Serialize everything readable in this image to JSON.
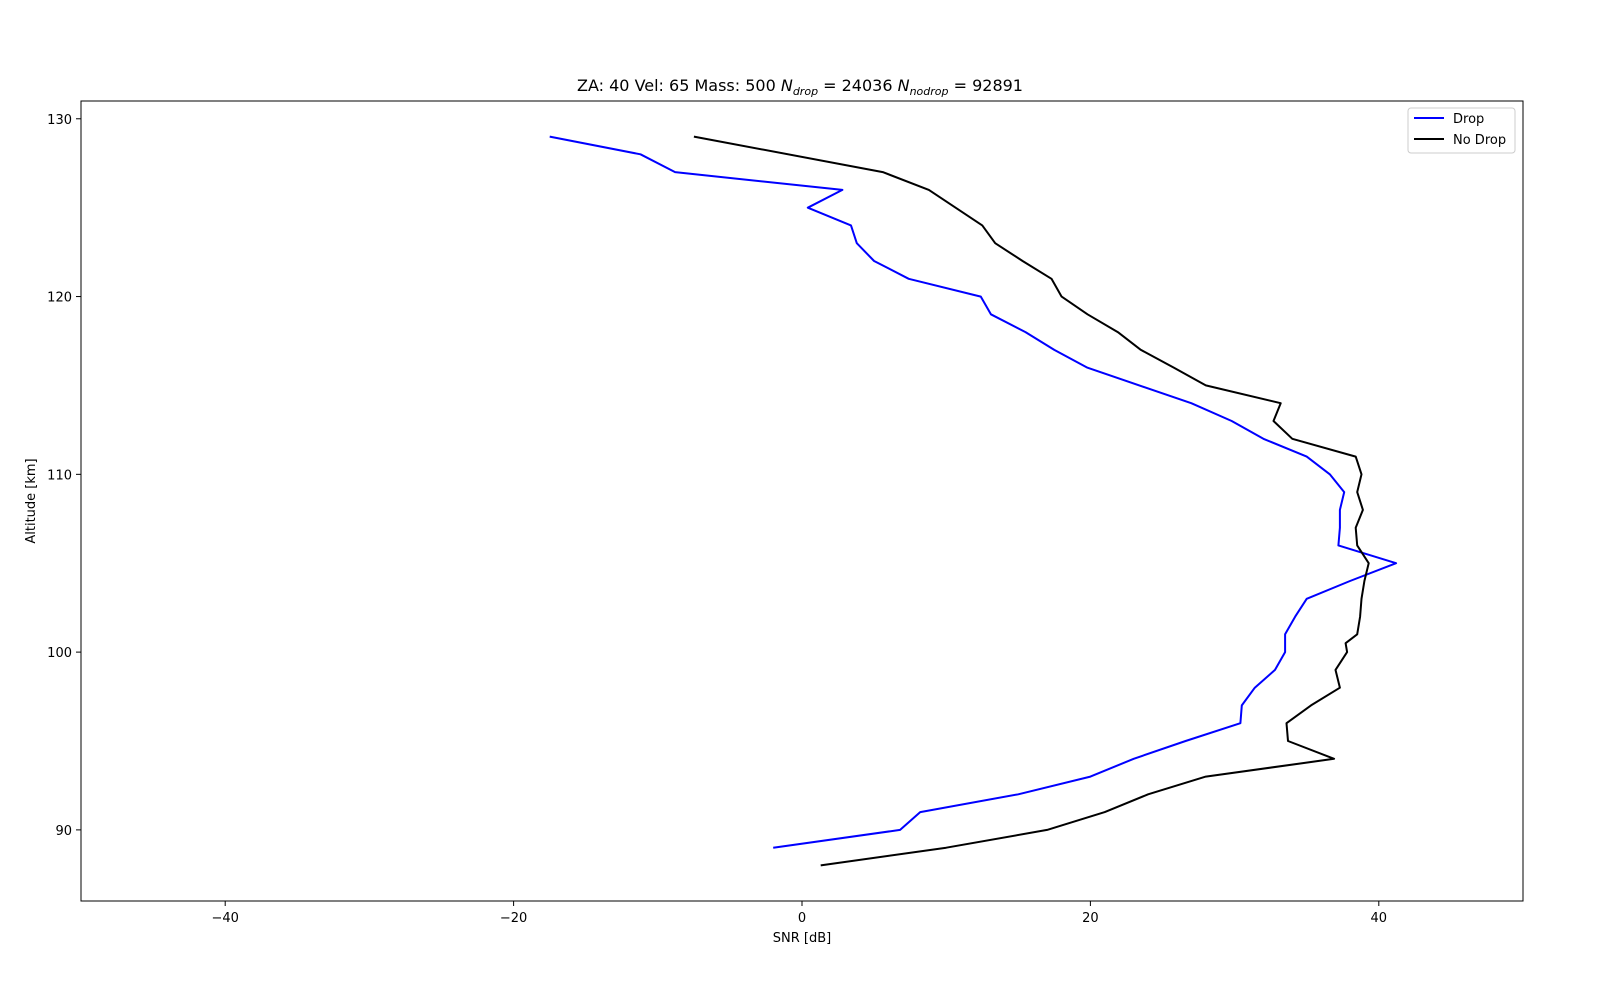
{
  "chart_data": {
    "type": "line",
    "title": {
      "prefix": "ZA: 40 Vel: 65 Mass: 500 ",
      "n_drop_symbol": "N",
      "n_drop_sub": "drop",
      "n_drop_value": " = 24036 ",
      "n_nodrop_symbol": "N",
      "n_nodrop_sub": "nodrop",
      "n_nodrop_value": " = 92891"
    },
    "xlabel": "SNR [dB]",
    "ylabel": "Altitude [km]",
    "xlim": [
      -50,
      50
    ],
    "ylim": [
      86,
      131
    ],
    "xticks": [
      -40,
      -20,
      0,
      20,
      40
    ],
    "xtick_labels": [
      "−40",
      "−20",
      "0",
      "20",
      "40"
    ],
    "yticks": [
      90,
      100,
      110,
      120,
      130
    ],
    "ytick_labels": [
      "90",
      "100",
      "110",
      "120",
      "130"
    ],
    "legend_position": "top-right",
    "series": [
      {
        "name": "Drop",
        "color": "#0000ff",
        "x": [
          -17.5,
          -11.2,
          -8.8,
          2.8,
          0.4,
          3.4,
          3.8,
          5.0,
          7.4,
          12.4,
          13.1,
          15.5,
          17.5,
          19.8,
          27.0,
          29.8,
          32.0,
          35.0,
          36.6,
          37.6,
          37.3,
          37.3,
          37.2,
          41.2,
          38.0,
          35.0,
          34.2,
          33.5,
          33.5,
          32.8,
          31.4,
          30.5,
          30.4,
          26.6,
          23.0,
          20.0,
          15.0,
          8.2,
          6.8,
          -2.0
        ],
        "y": [
          129,
          128,
          127,
          126,
          125,
          124,
          123,
          122,
          121,
          120,
          119,
          118,
          117,
          116,
          114,
          113,
          112,
          111,
          110,
          109,
          108,
          107,
          106,
          105,
          104,
          103,
          102,
          101,
          100,
          99,
          98,
          97,
          96,
          95,
          94,
          93,
          92,
          91,
          90,
          89
        ]
      },
      {
        "name": "No Drop",
        "color": "#000000",
        "x": [
          -7.5,
          5.6,
          8.8,
          12.5,
          13.4,
          15.3,
          17.3,
          18.0,
          19.8,
          21.9,
          23.5,
          25.8,
          28.0,
          33.2,
          32.7,
          34.0,
          38.4,
          38.8,
          38.5,
          38.9,
          38.4,
          38.5,
          39.3,
          39.0,
          38.8,
          38.7,
          38.5,
          37.7,
          37.8,
          37.0,
          37.3,
          35.3,
          33.6,
          33.7,
          36.9,
          28.0,
          24.0,
          21.0,
          17.0,
          10.0,
          1.3
        ],
        "y": [
          129,
          127,
          126,
          124,
          123,
          122,
          121,
          120,
          119,
          118,
          117,
          116,
          115,
          114,
          113,
          112,
          111,
          110,
          109,
          108,
          107,
          106,
          105,
          104,
          103,
          102,
          101,
          100.5,
          100,
          99,
          98,
          97,
          96,
          95,
          94,
          93,
          92,
          91,
          90,
          89,
          88
        ]
      }
    ]
  }
}
